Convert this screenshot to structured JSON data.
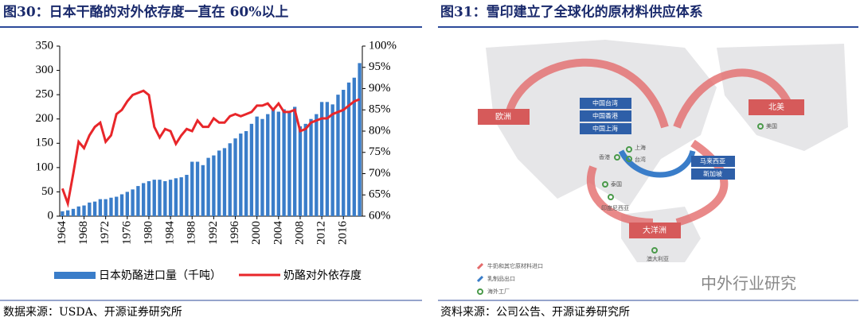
{
  "chart_data": {
    "type": "bar",
    "title": "图30：日本干酪的对外依存度一直在 60%以上",
    "source": "数据来源：USDA、开源证券研究所",
    "x": [
      1964,
      1965,
      1966,
      1967,
      1968,
      1969,
      1970,
      1971,
      1972,
      1973,
      1974,
      1975,
      1976,
      1977,
      1978,
      1979,
      1980,
      1981,
      1982,
      1983,
      1984,
      1985,
      1986,
      1987,
      1988,
      1989,
      1990,
      1991,
      1992,
      1993,
      1994,
      1995,
      1996,
      1997,
      1998,
      1999,
      2000,
      2001,
      2002,
      2003,
      2004,
      2005,
      2006,
      2007,
      2008,
      2009,
      2010,
      2011,
      2012,
      2013,
      2014,
      2015,
      2016,
      2017,
      2018,
      2019
    ],
    "xlim": [
      1963.5,
      2019.5
    ],
    "xticks": [
      1964,
      1968,
      1972,
      1976,
      1980,
      1984,
      1988,
      1992,
      1996,
      2000,
      2004,
      2008,
      2012,
      2016
    ],
    "ylim": [
      0,
      350
    ],
    "yticks": [
      0,
      50,
      100,
      150,
      200,
      250,
      300,
      350
    ],
    "y2lim": [
      60,
      100
    ],
    "y2ticks": [
      {
        "value": 60,
        "label": "60%"
      },
      {
        "value": 65,
        "label": "65%"
      },
      {
        "value": 70,
        "label": "70%"
      },
      {
        "value": 75,
        "label": "75%"
      },
      {
        "value": 80,
        "label": "80%"
      },
      {
        "value": 85,
        "label": "85%"
      },
      {
        "value": 90,
        "label": "90%"
      },
      {
        "value": 95,
        "label": "95%"
      },
      {
        "value": 100,
        "label": "100%"
      }
    ],
    "series": [
      {
        "name": "日本奶酪进口量（千吨）",
        "type": "bar",
        "color": "#3a7dc9",
        "values": [
          10,
          12,
          15,
          20,
          22,
          28,
          30,
          35,
          35,
          38,
          40,
          45,
          50,
          55,
          62,
          68,
          72,
          75,
          75,
          72,
          75,
          78,
          80,
          85,
          112,
          112,
          105,
          120,
          125,
          135,
          140,
          150,
          160,
          170,
          175,
          190,
          205,
          200,
          210,
          220,
          215,
          220,
          215,
          225,
          185,
          190,
          200,
          210,
          235,
          235,
          230,
          250,
          260,
          275,
          285,
          315
        ]
      },
      {
        "name": "奶酪对外依存度",
        "type": "line",
        "axis": "y2",
        "color": "#e8262a",
        "values": [
          66.5,
          63,
          70,
          77.5,
          76,
          79,
          81,
          82,
          77.5,
          79,
          84,
          85,
          87,
          88.5,
          89,
          89.5,
          88.5,
          81,
          78.5,
          80.5,
          80,
          77,
          79,
          80.5,
          80,
          82.5,
          81,
          81,
          83,
          82,
          82,
          83.5,
          84,
          83.5,
          84,
          84.5,
          86,
          86,
          86.5,
          85,
          86.5,
          84.5,
          84.5,
          85,
          80,
          80.5,
          82,
          82.5,
          83,
          83,
          84,
          84.5,
          85,
          86,
          87,
          87.5
        ]
      }
    ]
  },
  "diagram": {
    "title": "图31：雪印建立了全球化的原材料供应体系",
    "source": "资料来源：公司公告、开源证券研究所",
    "regions": [
      "欧洲",
      "北美",
      "大洋洲"
    ],
    "routes": [
      "中国台湾",
      "中国香港",
      "中国上海",
      "马来西亚",
      "新加坡"
    ],
    "factories": [
      "美国",
      "上海",
      "台湾",
      "香港",
      "泰国",
      "印度尼西亚",
      "澳大利亚"
    ],
    "legend": [
      "牛奶和其它原材料进口",
      "乳制品出口",
      "海外工厂"
    ],
    "watermark": "中外行业研究"
  }
}
